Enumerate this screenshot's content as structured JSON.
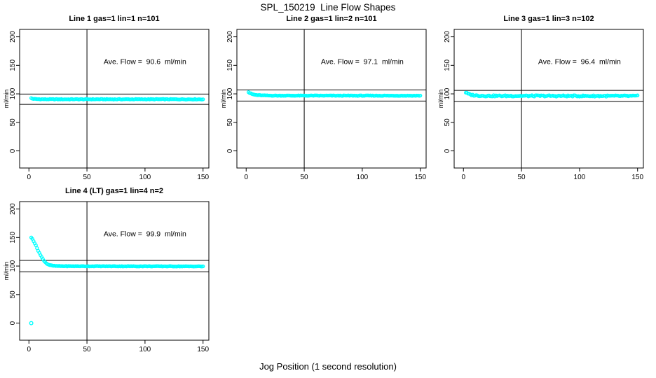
{
  "figure": {
    "title": "SPL_150219  Line Flow Shapes",
    "xlabel": "Jog Position (1 second resolution)",
    "background_color": "#ffffff",
    "point_color": "#00ffff",
    "line_color": "#000000"
  },
  "chart_data": [
    {
      "type": "scatter",
      "title": "Line 1 gas=1 lin=1 n=101",
      "annotation": "Ave. Flow =  90.6  ml/min",
      "avg_flow_ml_min": 90.6,
      "n": 101,
      "ylabel": "ml/min",
      "x_ticks": [
        0,
        50,
        100,
        150
      ],
      "y_ticks": [
        0,
        50,
        100,
        150,
        200
      ],
      "xlim": [
        -8,
        155
      ],
      "ylim": [
        -30,
        213
      ],
      "vline_x": 50,
      "ref_lines_y": [
        99.66,
        81.54
      ],
      "x_start": 2,
      "x_end": 150,
      "profile": [
        [
          2,
          92.5
        ],
        [
          3,
          91.5
        ],
        [
          5,
          91
        ],
        [
          8,
          90.7
        ],
        [
          15,
          90.5
        ],
        [
          150,
          90.5
        ]
      ],
      "noise": 1.1,
      "extra_points": [],
      "seed": 1
    },
    {
      "type": "scatter",
      "title": "Line 2 gas=1 lin=2 n=101",
      "annotation": "Ave. Flow =  97.1  ml/min",
      "avg_flow_ml_min": 97.1,
      "n": 101,
      "ylabel": "ml/min",
      "x_ticks": [
        0,
        50,
        100,
        150
      ],
      "y_ticks": [
        0,
        50,
        100,
        150,
        200
      ],
      "xlim": [
        -8,
        155
      ],
      "ylim": [
        -30,
        213
      ],
      "vline_x": 50,
      "ref_lines_y": [
        106.81,
        87.39
      ],
      "x_start": 2,
      "x_end": 150,
      "profile": [
        [
          2,
          103
        ],
        [
          3,
          101.5
        ],
        [
          4,
          100.5
        ],
        [
          6,
          99
        ],
        [
          8,
          98.2
        ],
        [
          10,
          97.8
        ],
        [
          15,
          97.2
        ],
        [
          25,
          96.9
        ],
        [
          150,
          96.8
        ]
      ],
      "noise": 0.9,
      "extra_points": [],
      "seed": 2
    },
    {
      "type": "scatter",
      "title": "Line 3 gas=1 lin=3 n=102",
      "annotation": "Ave. Flow =  96.4  ml/min",
      "avg_flow_ml_min": 96.4,
      "n": 102,
      "ylabel": "ml/min",
      "x_ticks": [
        0,
        50,
        100,
        150
      ],
      "y_ticks": [
        0,
        50,
        100,
        150,
        200
      ],
      "xlim": [
        -8,
        155
      ],
      "ylim": [
        -30,
        213
      ],
      "vline_x": 50,
      "ref_lines_y": [
        106.04,
        86.76
      ],
      "x_start": 2,
      "x_end": 150,
      "profile": [
        [
          2,
          102.5
        ],
        [
          3,
          101
        ],
        [
          4,
          100
        ],
        [
          6,
          98.5
        ],
        [
          8,
          97.8
        ],
        [
          12,
          97
        ],
        [
          20,
          96.5
        ],
        [
          150,
          96.2
        ]
      ],
      "noise": 2.4,
      "extra_points": [],
      "seed": 3
    },
    {
      "type": "scatter",
      "title": "Line 4 (LT) gas=1 lin=4 n=2",
      "annotation": "Ave. Flow =  99.9  ml/min",
      "avg_flow_ml_min": 99.9,
      "n": 2,
      "ylabel": "ml/min",
      "x_ticks": [
        0,
        50,
        100,
        150
      ],
      "y_ticks": [
        0,
        50,
        100,
        150,
        200
      ],
      "xlim": [
        -8,
        155
      ],
      "ylim": [
        -30,
        213
      ],
      "vline_x": 50,
      "ref_lines_y": [
        109.89,
        89.91
      ],
      "x_start": 2,
      "x_end": 150,
      "profile": [
        [
          2,
          150
        ],
        [
          3,
          148
        ],
        [
          4,
          144
        ],
        [
          5,
          140
        ],
        [
          6,
          136
        ],
        [
          7,
          131.5
        ],
        [
          8,
          127
        ],
        [
          9,
          123
        ],
        [
          10,
          119
        ],
        [
          11,
          115.5
        ],
        [
          12,
          112.5
        ],
        [
          13,
          109.5
        ],
        [
          14,
          107
        ],
        [
          15,
          105
        ],
        [
          16,
          103.5
        ],
        [
          17,
          102.5
        ],
        [
          18,
          101.8
        ],
        [
          19,
          101.2
        ],
        [
          20,
          100.8
        ],
        [
          22,
          100.3
        ],
        [
          25,
          100
        ],
        [
          30,
          99.8
        ],
        [
          50,
          99.7
        ],
        [
          100,
          99.6
        ],
        [
          150,
          99.4
        ]
      ],
      "noise": 0.8,
      "extra_points": [
        [
          2,
          0
        ]
      ],
      "seed": 4
    }
  ]
}
